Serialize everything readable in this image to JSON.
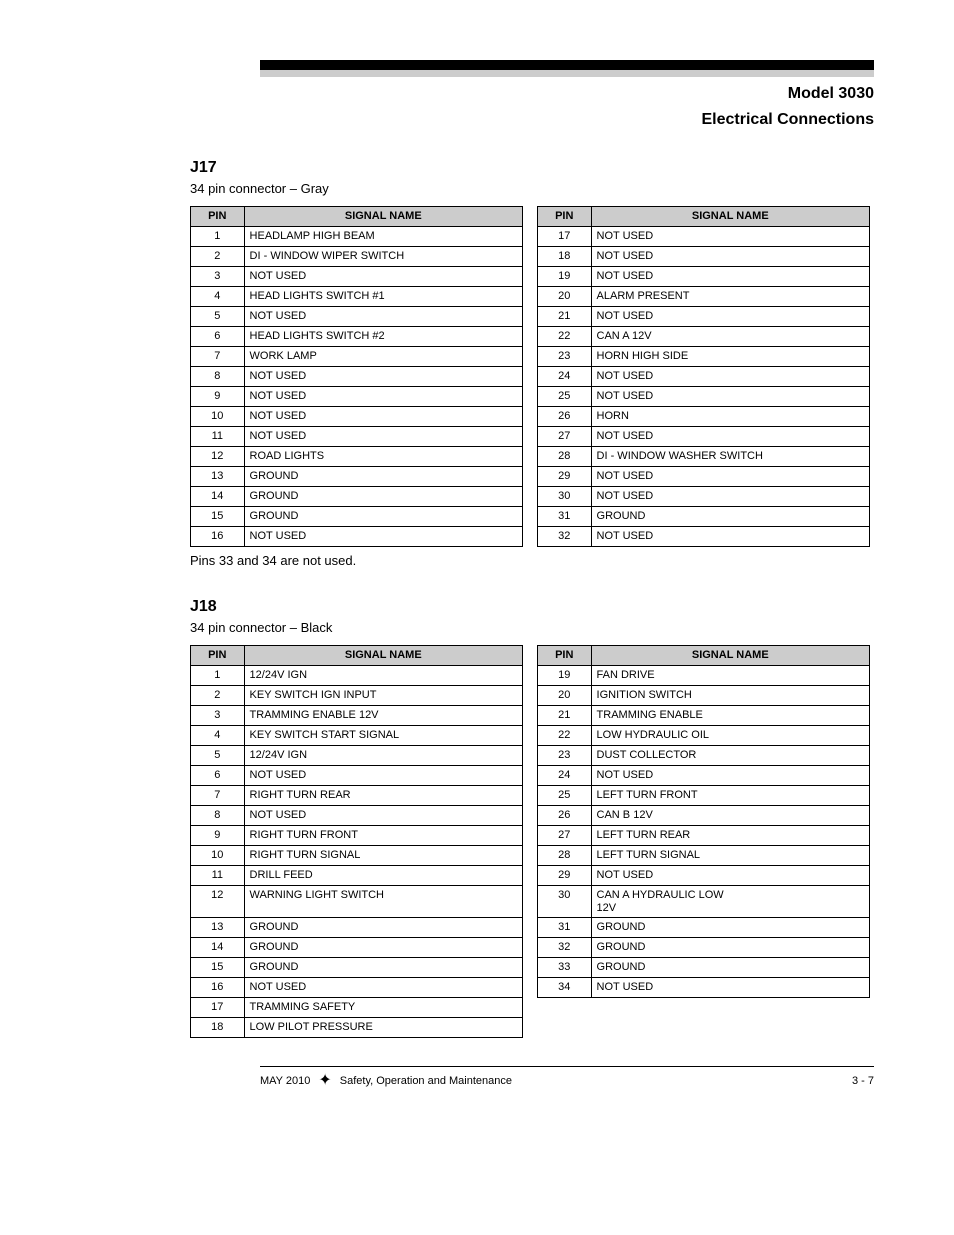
{
  "header": {
    "line1": "Model 3030",
    "line2": "Electrical Connections"
  },
  "section1": {
    "title": "J17",
    "subtitle": "34 pin connector – Gray",
    "columns": [
      "PIN",
      "SIGNAL NAME",
      "PIN",
      "SIGNAL NAME"
    ],
    "left": [
      {
        "pin": "1",
        "name": "HEADLAMP HIGH BEAM"
      },
      {
        "pin": "2",
        "name": "DI - WINDOW WIPER SWITCH"
      },
      {
        "pin": "3",
        "name": "NOT USED"
      },
      {
        "pin": "4",
        "name": "HEAD LIGHTS SWITCH #1"
      },
      {
        "pin": "5",
        "name": "NOT USED"
      },
      {
        "pin": "6",
        "name": "HEAD LIGHTS SWITCH #2"
      },
      {
        "pin": "7",
        "name": "WORK LAMP"
      },
      {
        "pin": "8",
        "name": "NOT USED"
      },
      {
        "pin": "9",
        "name": "NOT USED"
      },
      {
        "pin": "10",
        "name": "NOT USED"
      },
      {
        "pin": "11",
        "name": "NOT USED"
      },
      {
        "pin": "12",
        "name": "ROAD LIGHTS"
      },
      {
        "pin": "13",
        "name": "GROUND"
      },
      {
        "pin": "14",
        "name": "GROUND"
      },
      {
        "pin": "15",
        "name": "GROUND"
      },
      {
        "pin": "16",
        "name": "NOT USED"
      }
    ],
    "right": [
      {
        "pin": "17",
        "name": "NOT USED"
      },
      {
        "pin": "18",
        "name": "NOT USED"
      },
      {
        "pin": "19",
        "name": "NOT USED"
      },
      {
        "pin": "20",
        "name": "ALARM PRESENT"
      },
      {
        "pin": "21",
        "name": "NOT USED"
      },
      {
        "pin": "22",
        "name": "CAN A 12V"
      },
      {
        "pin": "23",
        "name": "HORN HIGH SIDE"
      },
      {
        "pin": "24",
        "name": "NOT USED"
      },
      {
        "pin": "25",
        "name": "NOT USED"
      },
      {
        "pin": "26",
        "name": "HORN"
      },
      {
        "pin": "27",
        "name": "NOT USED"
      },
      {
        "pin": "28",
        "name": "DI - WINDOW WASHER SWITCH"
      },
      {
        "pin": "29",
        "name": "NOT USED"
      },
      {
        "pin": "30",
        "name": "NOT USED"
      },
      {
        "pin": "31",
        "name": "GROUND"
      },
      {
        "pin": "32",
        "name": "NOT USED"
      }
    ],
    "note": "Pins 33 and 34 are not used."
  },
  "section2": {
    "title": "J18",
    "subtitle": "34 pin connector – Black",
    "columns": [
      "PIN",
      "SIGNAL NAME",
      "PIN",
      "SIGNAL NAME"
    ],
    "left": [
      {
        "pin": "1",
        "name": "12/24V IGN"
      },
      {
        "pin": "2",
        "name": "KEY SWITCH IGN INPUT"
      },
      {
        "pin": "3",
        "name": "TRAMMING ENABLE 12V"
      },
      {
        "pin": "4",
        "name": "KEY SWITCH START SIGNAL"
      },
      {
        "pin": "5",
        "name": "12/24V IGN"
      },
      {
        "pin": "6",
        "name": "NOT USED"
      },
      {
        "pin": "7",
        "name": "RIGHT TURN REAR"
      },
      {
        "pin": "8",
        "name": "NOT USED"
      },
      {
        "pin": "9",
        "name": "RIGHT TURN FRONT"
      },
      {
        "pin": "10",
        "name": "RIGHT TURN SIGNAL"
      },
      {
        "pin": "11",
        "name": "DRILL FEED"
      },
      {
        "pin": "12",
        "name": "WARNING LIGHT SWITCH"
      },
      {
        "pin": "13",
        "name": "GROUND"
      },
      {
        "pin": "14",
        "name": "GROUND"
      },
      {
        "pin": "15",
        "name": "GROUND"
      },
      {
        "pin": "16",
        "name": "NOT USED"
      },
      {
        "pin": "17",
        "name": "TRAMMING SAFETY"
      },
      {
        "pin": "18",
        "name": "LOW PILOT PRESSURE"
      }
    ],
    "right": [
      {
        "pin": "19",
        "name": "FAN DRIVE"
      },
      {
        "pin": "20",
        "name": "IGNITION SWITCH"
      },
      {
        "pin": "21",
        "name": "TRAMMING ENABLE"
      },
      {
        "pin": "22",
        "name": "LOW HYDRAULIC OIL"
      },
      {
        "pin": "23",
        "name": "DUST COLLECTOR"
      },
      {
        "pin": "24",
        "name": "NOT USED"
      },
      {
        "pin": "25",
        "name": "LEFT TURN FRONT"
      },
      {
        "pin": "26",
        "name": "CAN B 12V"
      },
      {
        "pin": "27",
        "name": "LEFT TURN REAR"
      },
      {
        "pin": "28",
        "name": "LEFT TURN SIGNAL"
      },
      {
        "pin": "29",
        "name": "NOT USED"
      },
      {
        "pin": "30",
        "name": "CAN A HYDRAULIC LOW\n12V"
      },
      {
        "pin": "31",
        "name": "GROUND"
      },
      {
        "pin": "32",
        "name": "GROUND"
      },
      {
        "pin": "33",
        "name": "GROUND"
      },
      {
        "pin": "34",
        "name": "NOT USED"
      }
    ]
  },
  "footer": {
    "left_label": "MAY 2010",
    "center": "Safety, Operation and Maintenance",
    "page": "3 - 7"
  }
}
